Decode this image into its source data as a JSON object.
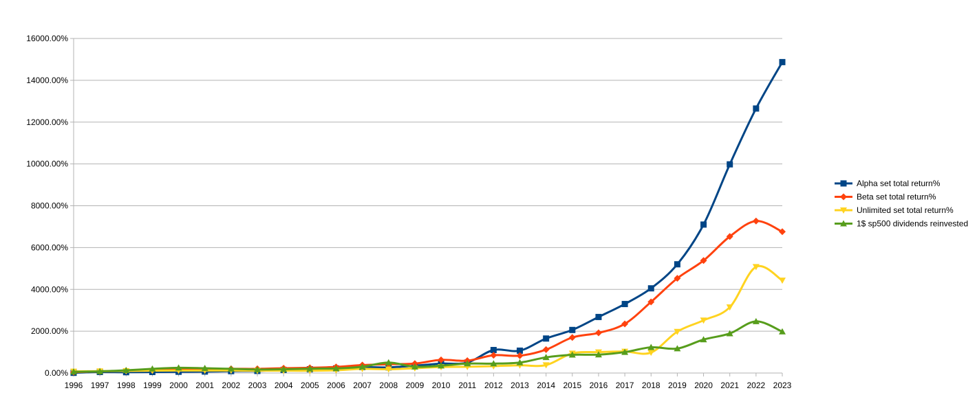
{
  "chart_data": {
    "type": "line",
    "title": "",
    "xlabel": "",
    "ylabel": "",
    "categories": [
      "1996",
      "1997",
      "1998",
      "1999",
      "2000",
      "2001",
      "2002",
      "2003",
      "2004",
      "2005",
      "2006",
      "2007",
      "2008",
      "2009",
      "2010",
      "2011",
      "2012",
      "2013",
      "2014",
      "2015",
      "2016",
      "2017",
      "2018",
      "2019",
      "2020",
      "2021",
      "2022",
      "2023"
    ],
    "ylim": [
      0,
      16000
    ],
    "yticks": [
      0,
      2000,
      4000,
      6000,
      8000,
      10000,
      12000,
      14000,
      16000
    ],
    "ytick_labels": [
      "0.00%",
      "2000.00%",
      "4000.00%",
      "6000.00%",
      "8000.00%",
      "10000.00%",
      "12000.00%",
      "14000.00%",
      "16000.00%"
    ],
    "grid": "horizontal",
    "legend_position": "right",
    "series": [
      {
        "name": "Alpha set total return%",
        "color": "#004586",
        "marker": "square",
        "values": [
          10,
          50,
          40,
          50,
          60,
          70,
          90,
          100,
          150,
          180,
          220,
          280,
          270,
          350,
          450,
          500,
          1100,
          1070,
          1650,
          2060,
          2680,
          3300,
          4050,
          5200,
          7100,
          9980,
          12650,
          14870
        ]
      },
      {
        "name": "Beta set total return%",
        "color": "#ff420e",
        "marker": "diamond",
        "values": [
          40,
          80,
          110,
          140,
          170,
          180,
          200,
          200,
          230,
          250,
          290,
          380,
          420,
          450,
          630,
          590,
          850,
          830,
          1120,
          1700,
          1920,
          2350,
          3400,
          4530,
          5380,
          6530,
          7270,
          6760
        ]
      },
      {
        "name": "Unlimited set total return%",
        "color": "#ffd320",
        "marker": "triangle-down",
        "values": [
          80,
          90,
          100,
          110,
          120,
          120,
          120,
          110,
          110,
          110,
          130,
          200,
          180,
          230,
          290,
          300,
          330,
          370,
          380,
          940,
          1000,
          1030,
          980,
          1980,
          2520,
          3150,
          5080,
          4430
        ]
      },
      {
        "name": "1$ sp500 dividends reinvested",
        "color": "#579d1c",
        "marker": "triangle-up",
        "values": [
          60,
          80,
          130,
          200,
          250,
          230,
          200,
          170,
          180,
          210,
          220,
          300,
          500,
          300,
          350,
          450,
          450,
          500,
          750,
          870,
          880,
          1000,
          1230,
          1170,
          1600,
          1890,
          2470,
          1980
        ]
      }
    ]
  }
}
